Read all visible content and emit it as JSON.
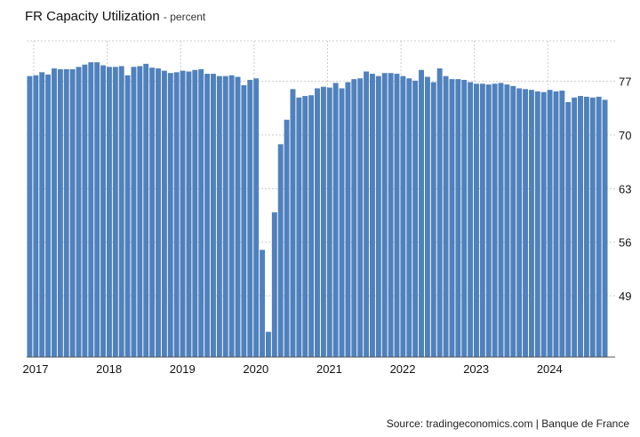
{
  "header": {
    "title": "FR Capacity Utilization",
    "subtitle": "- percent"
  },
  "footer": {
    "source": "Source: tradingeconomics.com | Banque de France"
  },
  "colors": {
    "bar": "#4f81bd",
    "grid": "#cccccc",
    "text": "#111111"
  },
  "chart_data": {
    "type": "bar",
    "title": "FR Capacity Utilization",
    "subtitle": "- percent",
    "xlabel": "",
    "ylabel": "",
    "ylim": [
      41,
      82.3
    ],
    "y_ticks": [
      49,
      56,
      63,
      70,
      77
    ],
    "y_axis_position": "right",
    "x_ticks": [
      "2017",
      "2018",
      "2019",
      "2020",
      "2021",
      "2022",
      "2023",
      "2024"
    ],
    "grid": true,
    "series": [
      {
        "values": [
          77.7,
          77.8,
          78.2,
          77.9,
          78.7,
          78.6,
          78.6,
          78.6,
          78.9,
          79.2,
          79.5,
          79.5,
          79.1,
          78.9,
          78.9,
          79.0,
          77.8,
          78.9,
          79.0,
          79.3,
          78.8,
          78.7,
          78.4,
          78.1,
          78.2,
          78.4,
          78.3,
          78.5,
          78.6,
          78.0,
          78.0,
          77.7,
          77.7,
          77.8,
          77.6,
          76.5,
          77.2,
          77.4,
          55.0,
          44.3,
          59.9,
          68.8,
          72.0,
          76.0,
          74.9,
          75.1,
          75.2,
          76.1,
          76.3,
          76.2,
          76.8,
          76.1,
          76.9,
          77.3,
          77.4,
          78.3,
          78.0,
          77.7,
          78.1,
          78.1,
          78.0,
          77.7,
          77.4,
          77.1,
          78.5,
          77.6,
          76.9,
          78.7,
          77.7,
          77.3,
          77.3,
          77.2,
          76.9,
          76.7,
          76.7,
          76.6,
          76.7,
          76.8,
          76.6,
          76.4,
          76.1,
          76.0,
          75.9,
          75.7,
          75.6,
          75.9,
          75.7,
          75.8,
          74.3,
          74.9,
          75.1,
          75.0,
          74.9,
          75.0,
          74.6
        ]
      }
    ]
  }
}
